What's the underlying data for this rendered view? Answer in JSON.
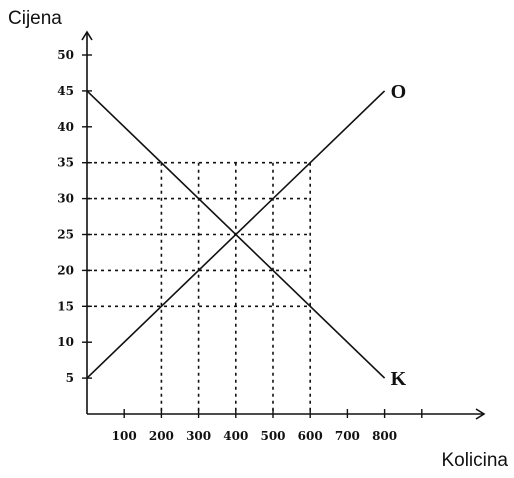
{
  "chart_data": {
    "type": "line",
    "xlabel": "Kolicina",
    "ylabel": "Cijena",
    "xlim": [
      0,
      800
    ],
    "ylim": [
      0,
      50
    ],
    "x_ticks": [
      100,
      200,
      300,
      400,
      500,
      600,
      700,
      800
    ],
    "y_ticks": [
      5,
      10,
      15,
      20,
      25,
      30,
      35,
      40,
      45,
      50
    ],
    "grid": false,
    "series": [
      {
        "name": "O",
        "x": [
          0,
          800
        ],
        "y": [
          5,
          45
        ]
      },
      {
        "name": "K",
        "x": [
          0,
          800
        ],
        "y": [
          45,
          5
        ]
      }
    ],
    "guide_x": [
      200,
      300,
      400,
      500,
      600
    ],
    "guide_y": [
      15,
      20,
      25,
      30,
      35
    ]
  }
}
